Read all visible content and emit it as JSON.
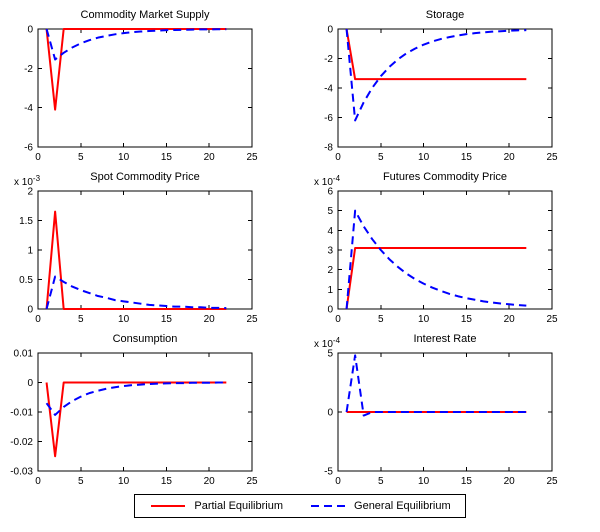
{
  "colors": {
    "partial": "#ff0000",
    "general": "#0000ff",
    "axis": "#000000",
    "background": "#ffffff"
  },
  "legend": {
    "items": [
      {
        "label": "Partial Equilibrium",
        "series": "partial",
        "line": "solid"
      },
      {
        "label": "General Equilibrium",
        "series": "general",
        "line": "dashed"
      }
    ]
  },
  "chart_data": [
    {
      "id": "commodity-market-supply",
      "type": "line",
      "title": "Commodity Market Supply",
      "xlabel": "",
      "ylabel": "",
      "xlim": [
        0,
        25
      ],
      "xticks": [
        0,
        5,
        10,
        15,
        20,
        25
      ],
      "ylim": [
        -6,
        0
      ],
      "yticks": [
        -6,
        -4,
        -2,
        0
      ],
      "y_exponent": null,
      "x": [
        1,
        2,
        3,
        4,
        5,
        6,
        7,
        8,
        9,
        10,
        11,
        12,
        13,
        14,
        15,
        16,
        17,
        18,
        19,
        20,
        21,
        22
      ],
      "series": [
        {
          "name": "Partial Equilibrium",
          "color_key": "partial",
          "style": "solid",
          "values": [
            0,
            -4.1,
            0,
            0,
            0,
            0,
            0,
            0,
            0,
            0,
            0,
            0,
            0,
            0,
            0,
            0,
            0,
            0,
            0,
            0,
            0,
            0
          ]
        },
        {
          "name": "General Equilibrium",
          "color_key": "general",
          "style": "dashed",
          "values": [
            0,
            -1.55,
            -1.21,
            -0.94,
            -0.73,
            -0.57,
            -0.44,
            -0.35,
            -0.27,
            -0.21,
            -0.16,
            -0.13,
            -0.1,
            -0.08,
            -0.06,
            -0.05,
            -0.04,
            -0.03,
            -0.02,
            -0.02,
            -0.01,
            -0.01
          ]
        }
      ]
    },
    {
      "id": "storage",
      "type": "line",
      "title": "Storage",
      "xlabel": "",
      "ylabel": "",
      "xlim": [
        0,
        25
      ],
      "xticks": [
        0,
        5,
        10,
        15,
        20,
        25
      ],
      "ylim": [
        -8,
        0
      ],
      "yticks": [
        -8,
        -6,
        -4,
        -2,
        0
      ],
      "y_exponent": null,
      "x": [
        1,
        2,
        3,
        4,
        5,
        6,
        7,
        8,
        9,
        10,
        11,
        12,
        13,
        14,
        15,
        16,
        17,
        18,
        19,
        20,
        21,
        22
      ],
      "series": [
        {
          "name": "Partial Equilibrium",
          "color_key": "partial",
          "style": "solid",
          "values": [
            0,
            -3.4,
            -3.4,
            -3.4,
            -3.4,
            -3.4,
            -3.4,
            -3.4,
            -3.4,
            -3.4,
            -3.4,
            -3.4,
            -3.4,
            -3.4,
            -3.4,
            -3.4,
            -3.4,
            -3.4,
            -3.4,
            -3.4,
            -3.4,
            -3.4
          ]
        },
        {
          "name": "General Equilibrium",
          "color_key": "general",
          "style": "dashed",
          "values": [
            0,
            -6.2,
            -4.97,
            -3.99,
            -3.2,
            -2.57,
            -2.06,
            -1.65,
            -1.33,
            -1.06,
            -0.85,
            -0.68,
            -0.55,
            -0.44,
            -0.35,
            -0.28,
            -0.23,
            -0.18,
            -0.15,
            -0.12,
            -0.09,
            -0.08
          ]
        }
      ]
    },
    {
      "id": "spot-commodity-price",
      "type": "line",
      "title": "Spot Commodity Price",
      "xlabel": "",
      "ylabel": "",
      "xlim": [
        0,
        25
      ],
      "xticks": [
        0,
        5,
        10,
        15,
        20,
        25
      ],
      "ylim": [
        0,
        2
      ],
      "yticks": [
        0,
        0.5,
        1,
        1.5,
        2
      ],
      "y_exponent": -3,
      "x": [
        1,
        2,
        3,
        4,
        5,
        6,
        7,
        8,
        9,
        10,
        11,
        12,
        13,
        14,
        15,
        16,
        17,
        18,
        19,
        20,
        21,
        22
      ],
      "series": [
        {
          "name": "Partial Equilibrium",
          "color_key": "partial",
          "style": "solid",
          "values": [
            0,
            1.65,
            0,
            0,
            0,
            0,
            0,
            0,
            0,
            0,
            0,
            0,
            0,
            0,
            0,
            0,
            0,
            0,
            0,
            0,
            0,
            0
          ]
        },
        {
          "name": "General Equilibrium",
          "color_key": "general",
          "style": "dashed",
          "values": [
            0,
            0.55,
            0.46,
            0.38,
            0.32,
            0.27,
            0.22,
            0.19,
            0.15,
            0.13,
            0.11,
            0.09,
            0.07,
            0.06,
            0.05,
            0.04,
            0.04,
            0.03,
            0.03,
            0.02,
            0.02,
            0.015
          ]
        }
      ]
    },
    {
      "id": "futures-commodity-price",
      "type": "line",
      "title": "Futures Commodity Price",
      "xlabel": "",
      "ylabel": "",
      "xlim": [
        0,
        25
      ],
      "xticks": [
        0,
        5,
        10,
        15,
        20,
        25
      ],
      "ylim": [
        0,
        6
      ],
      "yticks": [
        0,
        1,
        2,
        3,
        4,
        5,
        6
      ],
      "y_exponent": -4,
      "x": [
        1,
        2,
        3,
        4,
        5,
        6,
        7,
        8,
        9,
        10,
        11,
        12,
        13,
        14,
        15,
        16,
        17,
        18,
        19,
        20,
        21,
        22
      ],
      "series": [
        {
          "name": "Partial Equilibrium",
          "color_key": "partial",
          "style": "solid",
          "values": [
            0,
            3.1,
            3.1,
            3.1,
            3.1,
            3.1,
            3.1,
            3.1,
            3.1,
            3.1,
            3.1,
            3.1,
            3.1,
            3.1,
            3.1,
            3.1,
            3.1,
            3.1,
            3.1,
            3.1,
            3.1,
            3.1
          ]
        },
        {
          "name": "General Equilibrium",
          "color_key": "general",
          "style": "dashed",
          "values": [
            0,
            5.0,
            4.2,
            3.55,
            3.0,
            2.53,
            2.14,
            1.8,
            1.52,
            1.29,
            1.09,
            0.92,
            0.77,
            0.65,
            0.55,
            0.47,
            0.39,
            0.33,
            0.28,
            0.24,
            0.2,
            0.17
          ]
        }
      ]
    },
    {
      "id": "consumption",
      "type": "line",
      "title": "Consumption",
      "xlabel": "",
      "ylabel": "",
      "xlim": [
        0,
        25
      ],
      "xticks": [
        0,
        5,
        10,
        15,
        20,
        25
      ],
      "ylim": [
        -0.03,
        0.01
      ],
      "yticks": [
        -0.03,
        -0.02,
        -0.01,
        0,
        0.01
      ],
      "y_exponent": null,
      "x": [
        1,
        2,
        3,
        4,
        5,
        6,
        7,
        8,
        9,
        10,
        11,
        12,
        13,
        14,
        15,
        16,
        17,
        18,
        19,
        20,
        21,
        22
      ],
      "series": [
        {
          "name": "Partial Equilibrium",
          "color_key": "partial",
          "style": "solid",
          "values": [
            0,
            -0.025,
            0,
            0,
            0,
            0,
            0,
            0,
            0,
            0,
            0,
            0,
            0,
            0,
            0,
            0,
            0,
            0,
            0,
            0,
            0,
            0
          ]
        },
        {
          "name": "General Equilibrium",
          "color_key": "general",
          "style": "dashed",
          "values": [
            -0.007,
            -0.011,
            -0.0083,
            -0.0063,
            -0.0048,
            -0.0036,
            -0.0028,
            -0.0021,
            -0.0016,
            -0.0012,
            -0.0009,
            -0.0007,
            -0.0005,
            -0.0004,
            -0.0003,
            -0.0002,
            -0.0002,
            -0.0001,
            -0.0001,
            -0.0001,
            0,
            0
          ]
        }
      ]
    },
    {
      "id": "interest-rate",
      "type": "line",
      "title": "Interest Rate",
      "xlabel": "",
      "ylabel": "",
      "xlim": [
        0,
        25
      ],
      "xticks": [
        0,
        5,
        10,
        15,
        20,
        25
      ],
      "ylim": [
        -5,
        5
      ],
      "yticks": [
        -5,
        0,
        5
      ],
      "y_exponent": -4,
      "x": [
        1,
        2,
        3,
        4,
        5,
        6,
        7,
        8,
        9,
        10,
        11,
        12,
        13,
        14,
        15,
        16,
        17,
        18,
        19,
        20,
        21,
        22
      ],
      "series": [
        {
          "name": "Partial Equilibrium",
          "color_key": "partial",
          "style": "solid",
          "values": [
            0,
            0,
            0,
            0,
            0,
            0,
            0,
            0,
            0,
            0,
            0,
            0,
            0,
            0,
            0,
            0,
            0,
            0,
            0,
            0,
            0,
            0
          ]
        },
        {
          "name": "General Equilibrium",
          "color_key": "general",
          "style": "dashed",
          "values": [
            0,
            4.8,
            -0.3,
            0,
            0,
            0,
            0,
            0,
            0,
            0,
            0,
            0,
            0,
            0,
            0,
            0,
            0,
            0,
            0,
            0,
            0,
            0
          ]
        }
      ]
    }
  ]
}
